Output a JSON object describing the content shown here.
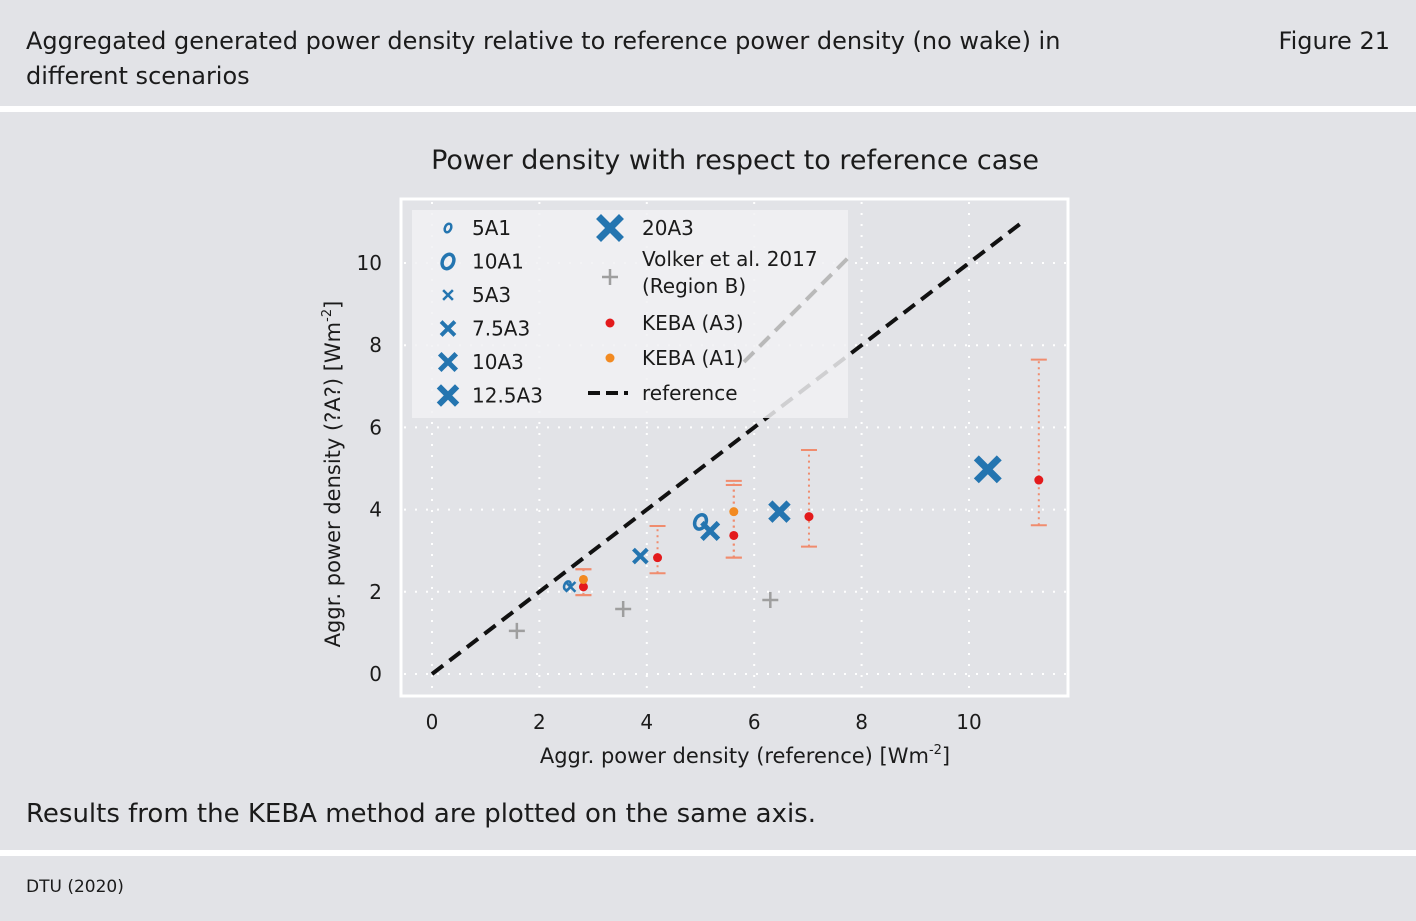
{
  "header": {
    "title": "Aggregated generated power density relative to reference power density (no wake) in different scenarios",
    "figure_label": "Figure 21"
  },
  "caption": "Results from the KEBA method are plotted on the same axis.",
  "source": "DTU (2020)",
  "colors": {
    "page_background": "#e2e3e7",
    "plot_background": "#e2e3e7",
    "blue": "#2475b0",
    "grey": "#9e9e9e",
    "red": "#e31a1c",
    "orange": "#f28a21",
    "errorbar": "#f08c6e",
    "reference": "#111111"
  },
  "chart_data": {
    "type": "scatter",
    "title": "Power density with respect to reference case",
    "xlabel": "Aggr. power density (reference) [Wm",
    "xlabel_sup": "-2",
    "xlabel_end": "]",
    "ylabel": "Aggr. power density (?A?) [Wm",
    "ylabel_sup": "-2",
    "ylabel_end": "]",
    "xlim": [
      -0.6,
      11.9
    ],
    "ylim": [
      -0.5,
      11.6
    ],
    "xticks": [
      0,
      2,
      4,
      6,
      8,
      10
    ],
    "yticks": [
      0,
      2,
      4,
      6,
      8,
      10
    ],
    "grid": true,
    "legend_position": "top-left",
    "series": [
      {
        "name": "5A1",
        "marker": "o-small",
        "color": "#2475b0",
        "points": [
          [
            2.52,
            2.15
          ]
        ]
      },
      {
        "name": "10A1",
        "marker": "o-large",
        "color": "#2475b0",
        "points": [
          [
            5.0,
            3.7
          ]
        ]
      },
      {
        "name": "5A3",
        "marker": "x-small",
        "color": "#2475b0",
        "points": [
          [
            2.58,
            2.12
          ]
        ]
      },
      {
        "name": "7.5A3",
        "marker": "x-medium",
        "color": "#2475b0",
        "points": [
          [
            3.88,
            2.87
          ]
        ]
      },
      {
        "name": "10A3",
        "marker": "x-large",
        "color": "#2475b0",
        "points": [
          [
            5.18,
            3.48
          ]
        ]
      },
      {
        "name": "12.5A3",
        "marker": "x-xlarge",
        "color": "#2475b0",
        "points": [
          [
            6.47,
            3.95
          ]
        ]
      },
      {
        "name": "20A3",
        "marker": "x-xxlarge",
        "color": "#2475b0",
        "points": [
          [
            10.35,
            4.98
          ]
        ]
      },
      {
        "name": "Volker et al. 2017 (Region B)",
        "marker": "plus",
        "color": "#9e9e9e",
        "points": [
          [
            1.58,
            1.05
          ],
          [
            3.56,
            1.58
          ],
          [
            6.3,
            1.8
          ]
        ]
      },
      {
        "name": "KEBA (A3)",
        "marker": "dot",
        "color": "#e31a1c",
        "points": [
          [
            2.82,
            2.12
          ],
          [
            4.2,
            2.83
          ],
          [
            5.62,
            3.37
          ],
          [
            7.02,
            3.83
          ],
          [
            11.3,
            4.72
          ]
        ],
        "error_low": [
          1.92,
          2.45,
          2.83,
          3.1,
          3.62
        ],
        "error_high": [
          2.55,
          3.6,
          4.6,
          5.45,
          7.65
        ]
      },
      {
        "name": "KEBA (A1)",
        "marker": "dot",
        "color": "#f28a21",
        "points": [
          [
            2.82,
            2.3
          ],
          [
            5.62,
            3.95
          ]
        ],
        "error_low": [
          1.92,
          2.83
        ],
        "error_high": [
          2.55,
          4.7
        ]
      },
      {
        "name": "reference",
        "marker": "dashed-line",
        "color": "#111111",
        "points": [
          [
            0,
            0
          ],
          [
            11,
            11
          ]
        ]
      }
    ],
    "legend_col1": [
      "5A1",
      "10A1",
      "5A3",
      "7.5A3",
      "10A3",
      "12.5A3"
    ],
    "legend_col2_line1": [
      "20A3",
      "Volker et al. 2017",
      "KEBA (A3)",
      "KEBA (A1)",
      "reference"
    ],
    "legend_col2_line2": "(Region B)"
  }
}
